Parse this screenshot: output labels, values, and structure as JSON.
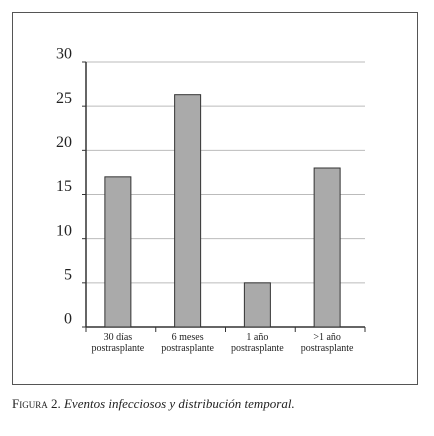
{
  "chart_data": {
    "type": "bar",
    "categories": [
      "30 días\npostrasplante",
      "6 meses\npostrasplante",
      "1 año\npostrasplante",
      ">1 año\npostrasplante"
    ],
    "values": [
      17,
      26.3,
      5,
      18
    ],
    "color": "#aaaaaa",
    "ylim": [
      0,
      30
    ],
    "yticks": [
      0,
      5,
      10,
      15,
      20,
      25,
      30
    ],
    "grid": true
  },
  "caption": {
    "label": "Figura 2.",
    "text": "Eventos infecciosos y distribución temporal."
  }
}
